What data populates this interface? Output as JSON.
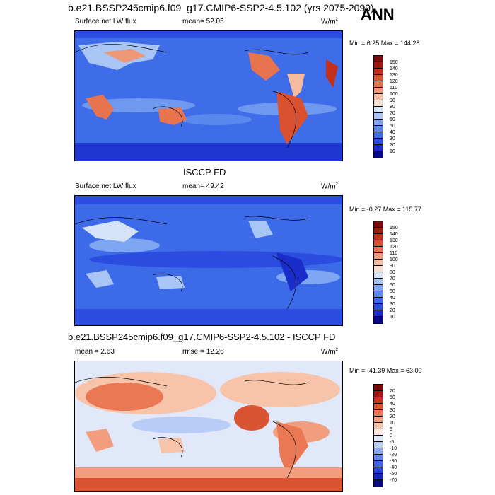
{
  "header": {
    "title": "b.e21.BSSP245cmip6.f09_g17.CMIP6-SSP2-4.5.102 (yrs 2075-2099)",
    "season": "ANN"
  },
  "panels": [
    {
      "left_label": "Surface net LW flux",
      "mean_label": "mean=  52.05",
      "units": "W/m",
      "units_sup": "2",
      "minmax": "Min =   6.25 Max = 144.28",
      "colorbar_ticks": [
        "150",
        "140",
        "130",
        "120",
        "110",
        "100",
        "90",
        "80",
        "70",
        "60",
        "50",
        "40",
        "30",
        "20",
        "10"
      ]
    },
    {
      "title": "ISCCP FD",
      "left_label": "Surface net LW flux",
      "mean_label": "mean=  49.42",
      "units": "W/m",
      "units_sup": "2",
      "minmax": "Min =  -0.27 Max = 115.77",
      "colorbar_ticks": [
        "150",
        "140",
        "130",
        "120",
        "110",
        "100",
        "90",
        "80",
        "70",
        "60",
        "50",
        "40",
        "30",
        "20",
        "10"
      ]
    },
    {
      "title": "b.e21.BSSP245cmip6.f09_g17.CMIP6-SSP2-4.5.102 - ISCCP FD",
      "left_label": "mean =   2.63",
      "mean_label": "rmse =  12.26",
      "units": "W/m",
      "units_sup": "2",
      "minmax": "Min = -41.39 Max =  63.00",
      "colorbar_ticks": [
        "70",
        "50",
        "40",
        "30",
        "20",
        "10",
        "5",
        "0",
        "-5",
        "-10",
        "-20",
        "-30",
        "-40",
        "-50",
        "-70"
      ]
    }
  ],
  "colors": {
    "abs_scale": [
      "#08088c",
      "#1a2cc9",
      "#2a4de0",
      "#3d6ae8",
      "#5a88ee",
      "#7ea6f2",
      "#a8c5f6",
      "#d4e3f8",
      "#f6ded0",
      "#f4bba0",
      "#ef9878",
      "#e7744f",
      "#d9512e",
      "#c3301a",
      "#a3180d",
      "#7a0a05"
    ],
    "diff_scale": [
      "#0a0a82",
      "#1728b5",
      "#2846d6",
      "#3f66e2",
      "#5f86ec",
      "#88a9f2",
      "#b7ccf6",
      "#e0e8fa",
      "#fbe7dc",
      "#f7c4aa",
      "#f29e7e",
      "#ea7854",
      "#db5432",
      "#c5341c",
      "#a5180d",
      "#7a0a05"
    ]
  }
}
